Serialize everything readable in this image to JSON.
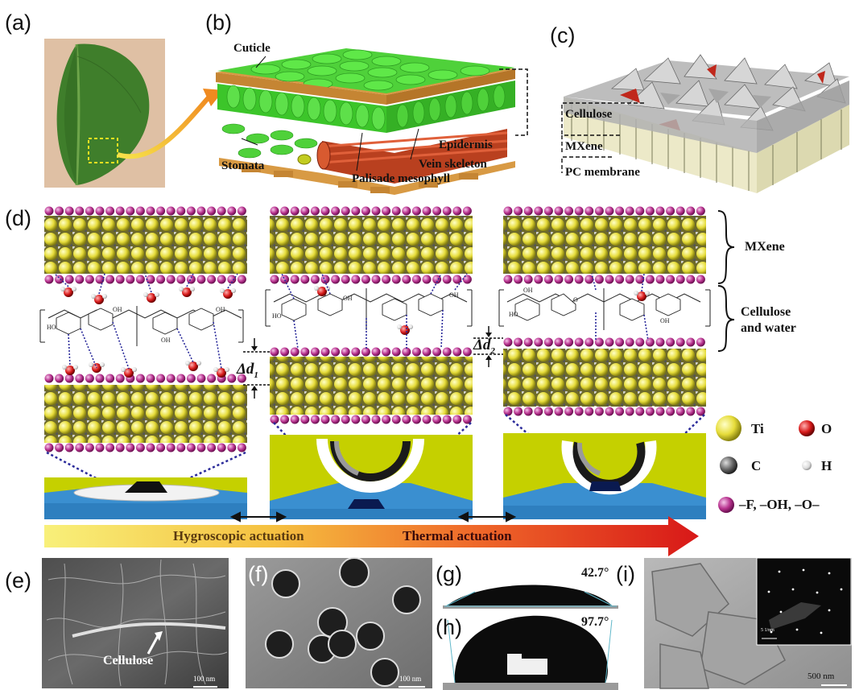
{
  "panels": {
    "a": "(a)",
    "b": "(b)",
    "c": "(c)",
    "d": "(d)",
    "e": "(e)",
    "f": "(f)",
    "g": "(g)",
    "h": "(h)",
    "i": "(i)"
  },
  "panel_b": {
    "cuticle": "Cuticle",
    "stomata": "Stomata",
    "palisade": "Palisade mesophyll",
    "vein": "Vein skeleton",
    "epidermis": "Epidermis"
  },
  "panel_c": {
    "cellulose": "Cellulose",
    "mxene": "MXene",
    "pc": "PC membrane"
  },
  "panel_d": {
    "mxene": "MXene",
    "cellulose_water": "Cellulose\nand water",
    "delta1": "Δd",
    "delta1_sub": "1",
    "delta2": "Δd",
    "delta2_sub": "2",
    "hygroscopic": "Hygroscopic actuation",
    "thermal": "Thermal actuation",
    "oh": "OH",
    "ho": "HO",
    "o": "O"
  },
  "legend": {
    "ti": "Ti",
    "o": "O",
    "c": "C",
    "h": "H",
    "terminal": "–F, –OH, –O–"
  },
  "panel_e": {
    "label": "Cellulose",
    "scale": "100 nm"
  },
  "panel_f": {
    "scale": "100 nm"
  },
  "panel_g": {
    "angle": "42.7°"
  },
  "panel_h": {
    "angle": "97.7°"
  },
  "panel_i": {
    "scale": "500 nm",
    "inset_scale": "5 1/nm"
  },
  "colors": {
    "leaf": "#3d7a2a",
    "green": "#3fcf2e",
    "vein": "#c0371d",
    "ti": "#e8e04a",
    "o": "#d92020",
    "terminal": "#b8338f",
    "substrate_green": "#c9d400",
    "substrate_blue": "#2e7fbf"
  }
}
